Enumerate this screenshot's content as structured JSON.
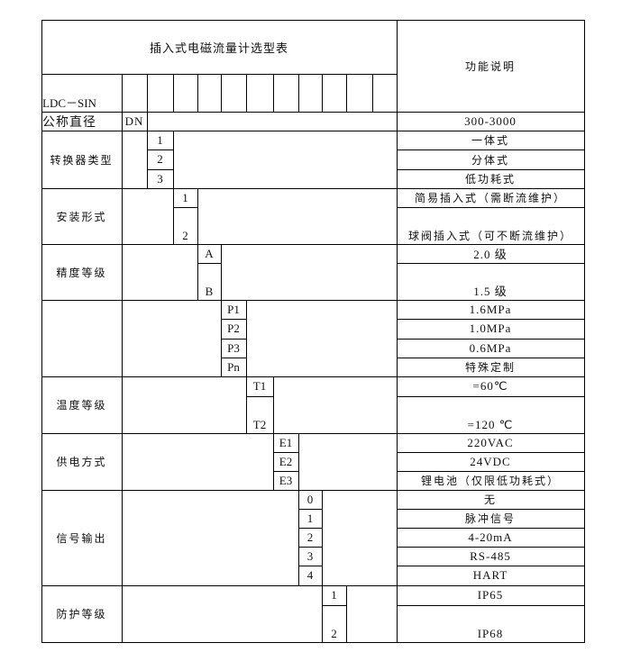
{
  "title": "插入式电磁流量计选型表",
  "header_right": "功能说明",
  "model": "LDC－SIN",
  "nominal": {
    "label": "公称直径",
    "code": "DN",
    "desc": "300-3000"
  },
  "groups": [
    {
      "key": "converter",
      "label": "转换器类型",
      "options": [
        {
          "code": "1",
          "desc": "一体式"
        },
        {
          "code": "2",
          "desc": "分体式"
        },
        {
          "code": "3",
          "desc": "低功耗式"
        }
      ]
    },
    {
      "key": "install",
      "label": "安装形式",
      "options": [
        {
          "code": "1",
          "desc": "简易插入式（需断流维护）"
        },
        {
          "code": "2",
          "desc": "球阀插入式（可不断流维护）"
        }
      ]
    },
    {
      "key": "precision",
      "label": "精度等级",
      "options": [
        {
          "code": "A",
          "desc": "2.0 级"
        },
        {
          "code": "B",
          "desc": "1.5 级"
        }
      ]
    },
    {
      "key": "pressure",
      "label": "",
      "options": [
        {
          "code": "P1",
          "desc": "1.6MPa"
        },
        {
          "code": "P2",
          "desc": "1.0MPa"
        },
        {
          "code": "P3",
          "desc": "0.6MPa"
        },
        {
          "code": "Pn",
          "desc": "特殊定制"
        }
      ]
    },
    {
      "key": "temperature",
      "label": "温度等级",
      "options": [
        {
          "code": "T1",
          "desc": "=60℃"
        },
        {
          "code": "T2",
          "desc": "=120 ℃"
        }
      ]
    },
    {
      "key": "power",
      "label": "供电方式",
      "options": [
        {
          "code": "E1",
          "desc": "220VAC"
        },
        {
          "code": "E2",
          "desc": "24VDC"
        },
        {
          "code": "E3",
          "desc": "锂电池（仅限低功耗式）"
        }
      ]
    },
    {
      "key": "signal",
      "label": "信号输出",
      "options": [
        {
          "code": "0",
          "desc": "无"
        },
        {
          "code": "1",
          "desc": "脉冲信号"
        },
        {
          "code": "2",
          "desc": "4-20mA"
        },
        {
          "code": "3",
          "desc": "RS-485"
        },
        {
          "code": "4",
          "desc": "HART"
        }
      ]
    },
    {
      "key": "protection",
      "label": "防护等级",
      "options": [
        {
          "code": "1",
          "desc": "IP65"
        },
        {
          "code": "2",
          "desc": "IP68"
        }
      ]
    }
  ]
}
